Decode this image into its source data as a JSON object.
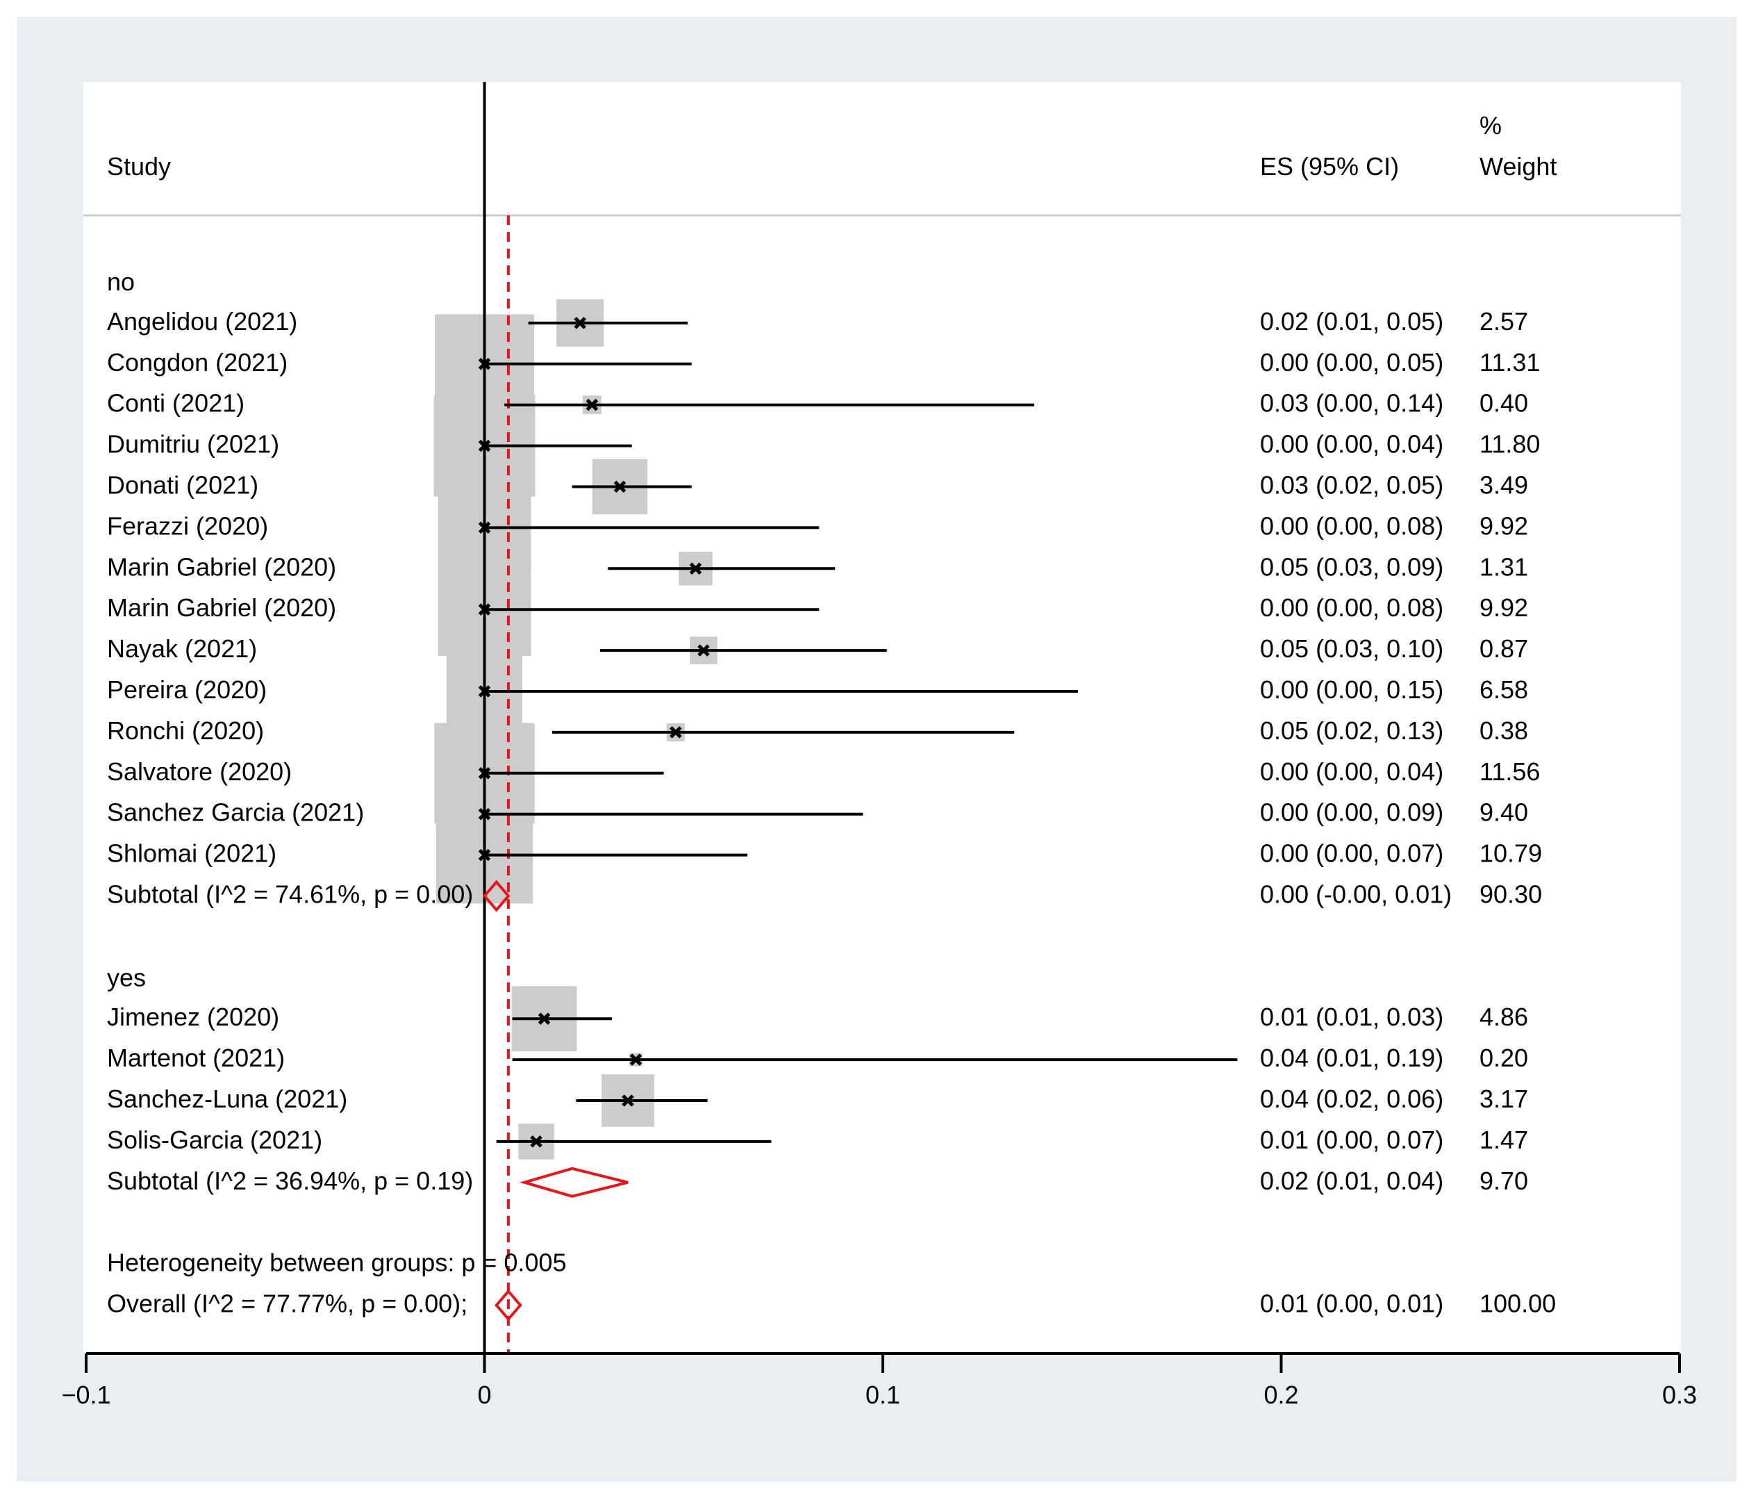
{
  "chart_data": {
    "type": "forest",
    "x_axis": {
      "min": -0.1,
      "max": 0.3,
      "ticks": [
        -0.1,
        0,
        0.1,
        0.2,
        0.3
      ],
      "tick_labels": [
        "−0.1",
        "0",
        "0.1",
        "0.2",
        "0.3"
      ]
    },
    "headers": {
      "study": "Study",
      "es": "ES (95% CI)",
      "weight_pct": "%",
      "weight": "Weight"
    },
    "overall_reference_line": 0.006,
    "rows": [
      {
        "kind": "group",
        "label": "no"
      },
      {
        "kind": "study",
        "label": "Angelidou  (2021)",
        "es": 0.024,
        "lo": 0.011,
        "hi": 0.051,
        "weight": 2.57,
        "es_text": "0.02 (0.01, 0.05)",
        "weight_text": "2.57"
      },
      {
        "kind": "study",
        "label": "Congdon (2021)",
        "es": 0.0,
        "lo": 0.0,
        "hi": 0.052,
        "weight": 11.31,
        "es_text": "0.00 (0.00, 0.05)",
        "weight_text": "11.31"
      },
      {
        "kind": "study",
        "label": "Conti  (2021)",
        "es": 0.027,
        "lo": 0.005,
        "hi": 0.138,
        "weight": 0.4,
        "es_text": "0.03 (0.00, 0.14)",
        "weight_text": "0.40"
      },
      {
        "kind": "study",
        "label": "Dumitriu  (2021)",
        "es": 0.0,
        "lo": 0.0,
        "hi": 0.037,
        "weight": 11.8,
        "es_text": "0.00 (0.00, 0.04)",
        "weight_text": "11.80"
      },
      {
        "kind": "study",
        "label": "Donati  (2021)",
        "es": 0.034,
        "lo": 0.022,
        "hi": 0.052,
        "weight": 3.49,
        "es_text": "0.03 (0.02, 0.05)",
        "weight_text": "3.49"
      },
      {
        "kind": "study",
        "label": "Ferazzi  (2020)",
        "es": 0.0,
        "lo": 0.0,
        "hi": 0.084,
        "weight": 9.92,
        "es_text": "0.00 (0.00, 0.08)",
        "weight_text": "9.92"
      },
      {
        "kind": "study",
        "label": "Marin Gabriel  (2020)",
        "es": 0.053,
        "lo": 0.031,
        "hi": 0.088,
        "weight": 1.31,
        "es_text": "0.05 (0.03, 0.09)",
        "weight_text": "1.31"
      },
      {
        "kind": "study",
        "label": "Marin Gabriel  (2020)",
        "es": 0.0,
        "lo": 0.0,
        "hi": 0.084,
        "weight": 9.92,
        "es_text": "0.00 (0.00, 0.08)",
        "weight_text": "9.92"
      },
      {
        "kind": "study",
        "label": "Nayak  (2021)",
        "es": 0.055,
        "lo": 0.029,
        "hi": 0.101,
        "weight": 0.87,
        "es_text": "0.05 (0.03, 0.10)",
        "weight_text": "0.87"
      },
      {
        "kind": "study",
        "label": "Pereira  (2020)",
        "es": 0.0,
        "lo": 0.0,
        "hi": 0.149,
        "weight": 6.58,
        "es_text": "0.00 (0.00, 0.15)",
        "weight_text": "6.58"
      },
      {
        "kind": "study",
        "label": "Ronchi  (2020)",
        "es": 0.048,
        "lo": 0.017,
        "hi": 0.133,
        "weight": 0.38,
        "es_text": "0.05 (0.02, 0.13)",
        "weight_text": "0.38"
      },
      {
        "kind": "study",
        "label": "Salvatore  (2020)",
        "es": 0.0,
        "lo": 0.0,
        "hi": 0.045,
        "weight": 11.56,
        "es_text": "0.00 (0.00, 0.04)",
        "weight_text": "11.56"
      },
      {
        "kind": "study",
        "label": "Sanchez Garcia  (2021)",
        "es": 0.0,
        "lo": 0.0,
        "hi": 0.095,
        "weight": 9.4,
        "es_text": "0.00 (0.00, 0.09)",
        "weight_text": "9.40"
      },
      {
        "kind": "study",
        "label": "Shlomai  (2021)",
        "es": 0.0,
        "lo": 0.0,
        "hi": 0.066,
        "weight": 10.79,
        "es_text": "0.00 (0.00, 0.07)",
        "weight_text": "10.79"
      },
      {
        "kind": "subtotal",
        "label": "Subtotal  (I^2 = 74.61%, p = 0.00)",
        "es": 0.003,
        "lo": 0.0,
        "hi": 0.006,
        "es_text": "0.00 (-0.00, 0.01)",
        "weight_text": "90.30"
      },
      {
        "kind": "blank"
      },
      {
        "kind": "group",
        "label": "yes"
      },
      {
        "kind": "study",
        "label": "Jimenez  (2020)",
        "es": 0.015,
        "lo": 0.007,
        "hi": 0.032,
        "weight": 4.86,
        "es_text": "0.01 (0.01, 0.03)",
        "weight_text": "4.86"
      },
      {
        "kind": "study",
        "label": "Martenot  (2021)",
        "es": 0.038,
        "lo": 0.007,
        "hi": 0.189,
        "weight": 0.2,
        "es_text": "0.04 (0.01, 0.19)",
        "weight_text": "0.20"
      },
      {
        "kind": "study",
        "label": "Sanchez-Luna (2021)",
        "es": 0.036,
        "lo": 0.023,
        "hi": 0.056,
        "weight": 3.17,
        "es_text": "0.04 (0.02, 0.06)",
        "weight_text": "3.17"
      },
      {
        "kind": "study",
        "label": "Solis-Garcia  (2021)",
        "es": 0.013,
        "lo": 0.003,
        "hi": 0.072,
        "weight": 1.47,
        "es_text": "0.01 (0.00, 0.07)",
        "weight_text": "1.47"
      },
      {
        "kind": "subtotal",
        "label": "Subtotal  (I^2 = 36.94%, p = 0.19)",
        "es": 0.022,
        "lo": 0.01,
        "hi": 0.036,
        "es_text": "0.02 (0.01, 0.04)",
        "weight_text": "9.70"
      },
      {
        "kind": "blank"
      },
      {
        "kind": "note",
        "label": "Heterogeneity between groups: p = 0.005"
      },
      {
        "kind": "overall",
        "label": "Overall  (I^2 = 77.77%, p = 0.00);",
        "es": 0.006,
        "lo": 0.003,
        "hi": 0.009,
        "es_text": "0.01 (0.00, 0.01)",
        "weight_text": "100.00"
      }
    ]
  },
  "colors": {
    "background": "#e8eef2",
    "panel": "#ffffff",
    "box": "#cccccc",
    "diamond": "#e8161b",
    "line": "#000000"
  }
}
